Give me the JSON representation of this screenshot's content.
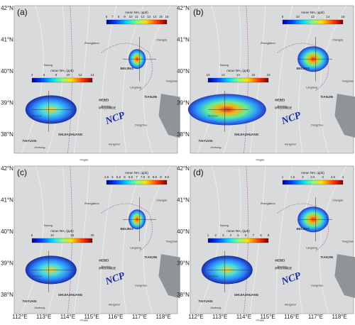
{
  "panels": [
    {
      "label": "(a)",
      "colorbars": [
        {
          "title": "mean NH₃ (ppb)",
          "ticks": [
            6,
            7,
            8,
            9,
            10,
            11,
            12,
            13,
            14,
            15,
            16
          ]
        },
        {
          "title": "mean NH₃ (ppb)",
          "ticks": [
            4,
            6,
            8,
            10,
            12,
            14
          ]
        }
      ]
    },
    {
      "label": "(b)",
      "colorbars": [
        {
          "title": "mean NH₃ (ppb)",
          "ticks": [
            8,
            10,
            12,
            14,
            16
          ]
        },
        {
          "title": "mean NH₃ (ppb)",
          "ticks": [
            10,
            12,
            14,
            16,
            18
          ]
        }
      ]
    },
    {
      "label": "(c)",
      "colorbars": [
        {
          "title": "mean NH₃ (ppb)",
          "ticks": [
            4.5,
            5,
            5.5,
            6,
            6.5,
            7,
            7.5,
            8,
            8.5,
            9,
            9.5
          ]
        },
        {
          "title": "mean NH₃ (ppb)",
          "ticks": [
            5,
            10,
            15,
            20
          ]
        }
      ]
    },
    {
      "label": "(d)",
      "colorbars": [
        {
          "title": "mean NH₃ (ppb)",
          "ticks": [
            1,
            1.5,
            2,
            2.5,
            3,
            3.5,
            4
          ]
        },
        {
          "title": "mean NH₃ (ppb)",
          "ticks": [
            1,
            2,
            3,
            4,
            5,
            6,
            7,
            8,
            9
          ]
        }
      ]
    }
  ],
  "place_labels": [
    "BEIJING",
    "TIANJIN",
    "HEBEI",
    "PROVINCE",
    "NCP",
    "SHIJIAZHUANG",
    "TAIYUAN",
    "Zhangjiakou",
    "Chengde",
    "Datong",
    "Baoding",
    "Langfang",
    "Tangshan",
    "Xinzhou",
    "Jinzhong",
    "Cangzhou",
    "Hengshui",
    "Xingtai"
  ],
  "lat_labels": [
    "42°N",
    "41°N",
    "40°N",
    "39°N",
    "38°N"
  ],
  "lon_labels": [
    "112°E",
    "113°E",
    "114°E",
    "115°E",
    "116°E",
    "117°E",
    "118°E"
  ]
}
